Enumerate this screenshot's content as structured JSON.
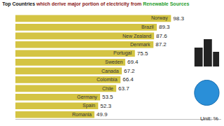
{
  "chart_data": {
    "type": "bar",
    "orientation": "horizontal",
    "title": "Top Countries which derive major portion of electricity from Renewable Sources",
    "categories": [
      "Norway",
      "Brazil",
      "New Zealand",
      "Denmark",
      "Portugal",
      "Sweden",
      "Canada",
      "Colombia",
      "Chile",
      "Germany",
      "Spain",
      "Romania"
    ],
    "values": [
      98.3,
      89.3,
      87.6,
      87.2,
      75.5,
      69.4,
      67.2,
      66.4,
      63.7,
      53.5,
      52.3,
      49.9
    ],
    "color": "#d4c443",
    "xlim": [
      0,
      130
    ],
    "xticks": [],
    "grid": false,
    "data_labels": true,
    "tick_labels": false,
    "annotations": [
      "Unit: %"
    ]
  }
}
